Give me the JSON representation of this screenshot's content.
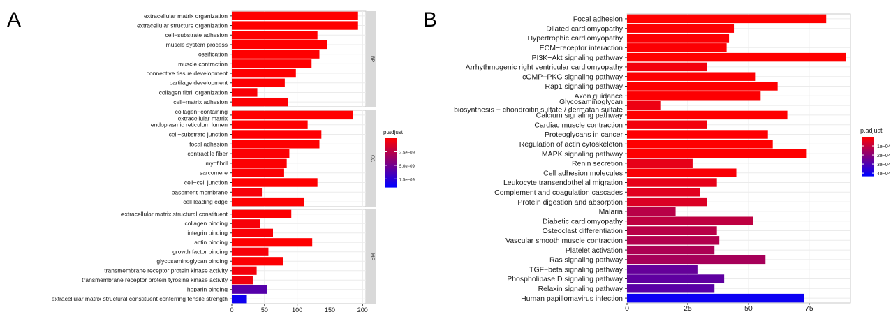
{
  "panel_labels": {
    "a": "A",
    "b": "B"
  },
  "chart_data": [
    {
      "type": "bar",
      "orientation": "horizontal",
      "panel": "A",
      "xlim": [
        0,
        205
      ],
      "xticks": [
        0,
        50,
        100,
        150,
        200
      ],
      "grid": true,
      "facets": [
        {
          "strip": "BP",
          "categories": [
            "extracellular matrix organization",
            "extracellular structure organization",
            "cell−substrate adhesion",
            "muscle system process",
            "ossification",
            "muscle contraction",
            "connective tissue development",
            "cartilage development",
            "collagen fibril organization",
            "cell−matrix adhesion"
          ],
          "values": [
            193,
            193,
            131,
            146,
            134,
            122,
            98,
            81,
            39,
            86
          ],
          "p_adjust": [
            1e-12,
            1e-12,
            2e-11,
            1e-11,
            2e-11,
            3e-11,
            5e-11,
            8e-11,
            2e-10,
            1e-10
          ]
        },
        {
          "strip": "CC",
          "categories": [
            [
              "collagen−containing",
              "extracellular matrix"
            ],
            "endoplasmic reticulum lumen",
            "cell−substrate junction",
            "focal adhesion",
            "contractile fiber",
            "myofibril",
            "sarcomere",
            "cell−cell junction",
            "basement membrane",
            "cell leading edge"
          ],
          "values": [
            185,
            116,
            137,
            134,
            88,
            84,
            80,
            131,
            46,
            111
          ],
          "p_adjust": [
            1e-12,
            5e-11,
            2e-11,
            3e-11,
            1e-10,
            1e-10,
            1.5e-10,
            3e-11,
            3e-10,
            6e-11
          ]
        },
        {
          "strip": "MF",
          "categories": [
            "extracellular matrix structural constituent",
            "collagen binding",
            "integrin binding",
            "actin binding",
            "growth factor binding",
            "glycosaminoglycan binding",
            "transmembrane receptor protein kinase activity",
            "transmembrane receptor protein tyrosine kinase activity",
            "heparin binding",
            "extracellular matrix structural constituent conferring tensile strength"
          ],
          "values": [
            91,
            43,
            63,
            123,
            56,
            78,
            38,
            32,
            54,
            23
          ],
          "p_adjust": [
            1e-10,
            3e-10,
            2e-10,
            5e-11,
            3e-10,
            1e-10,
            4e-10,
            5e-10,
            6e-09,
            8.5e-09
          ]
        }
      ],
      "legend": {
        "title": "p.adjust",
        "ticks": [
          "2.5e−09",
          "5.0e−09",
          "7.5e−09"
        ],
        "tick_values": [
          2.5e-09,
          5e-09,
          7.5e-09
        ],
        "range": [
          0,
          9e-09
        ],
        "position": "right"
      }
    },
    {
      "type": "bar",
      "orientation": "horizontal",
      "panel": "B",
      "xlim": [
        0,
        92
      ],
      "xticks": [
        0,
        25,
        50,
        75
      ],
      "grid": true,
      "categories": [
        "Focal adhesion",
        "Dilated cardiomyopathy",
        "Hypertrophic cardiomyopathy",
        "ECM−receptor interaction",
        "PI3K−Akt signaling pathway",
        "Arrhythmogenic right ventricular cardiomyopathy",
        "cGMP−PKG signaling pathway",
        "Rap1 signaling pathway",
        "Axon guidance",
        [
          "Glycosaminoglycan",
          "biosynthesis − chondroitin sulfate / dermatan sulfate"
        ],
        "Calcium signaling pathway",
        "Cardiac muscle contraction",
        "Proteoglycans in cancer",
        "Regulation of actin cytoskeleton",
        "MAPK signaling pathway",
        "Renin secretion",
        "Cell adhesion molecules",
        "Leukocyte transendothelial migration",
        "Complement and coagulation cascades",
        "Protein digestion and absorption",
        "Malaria",
        "Diabetic cardiomyopathy",
        "Osteoclast differentiation",
        "Vascular smooth muscle contraction",
        "Platelet activation",
        "Ras signaling pathway",
        "TGF−beta signaling pathway",
        "Phospholipase D signaling pathway",
        "Relaxin signaling pathway",
        "Human papillomavirus infection"
      ],
      "values": [
        82,
        44,
        42,
        41,
        90,
        33,
        53,
        62,
        55,
        14,
        66,
        33,
        58,
        60,
        74,
        27,
        45,
        37,
        30,
        33,
        20,
        52,
        37,
        38,
        36,
        57,
        29,
        40,
        36,
        73
      ],
      "p_adjust": [
        1e-08,
        5e-06,
        5e-06,
        5e-06,
        1e-08,
        2e-05,
        3e-06,
        1e-06,
        3e-06,
        3e-05,
        1e-06,
        2e-05,
        1e-06,
        1e-06,
        1e-06,
        4e-05,
        1e-05,
        4e-05,
        5e-05,
        6e-05,
        0.00012,
        0.00011,
        0.00012,
        0.00013,
        0.00014,
        0.00015,
        0.00026,
        0.00027,
        0.00028,
        0.00041
      ],
      "legend": {
        "title": "p.adjust",
        "ticks": [
          "1e−04",
          "2e−04",
          "3e−04",
          "4e−04"
        ],
        "tick_values": [
          0.0001,
          0.0002,
          0.0003,
          0.0004
        ],
        "range": [
          0,
          0.00043
        ],
        "position": "right"
      }
    }
  ],
  "colors": {
    "low": "#ff0000",
    "high": "#0000ff",
    "panel_bg": "#ffffff",
    "grid": "#ebebeb",
    "strip_bg": "#d9d9d9",
    "frame": "#333333"
  }
}
